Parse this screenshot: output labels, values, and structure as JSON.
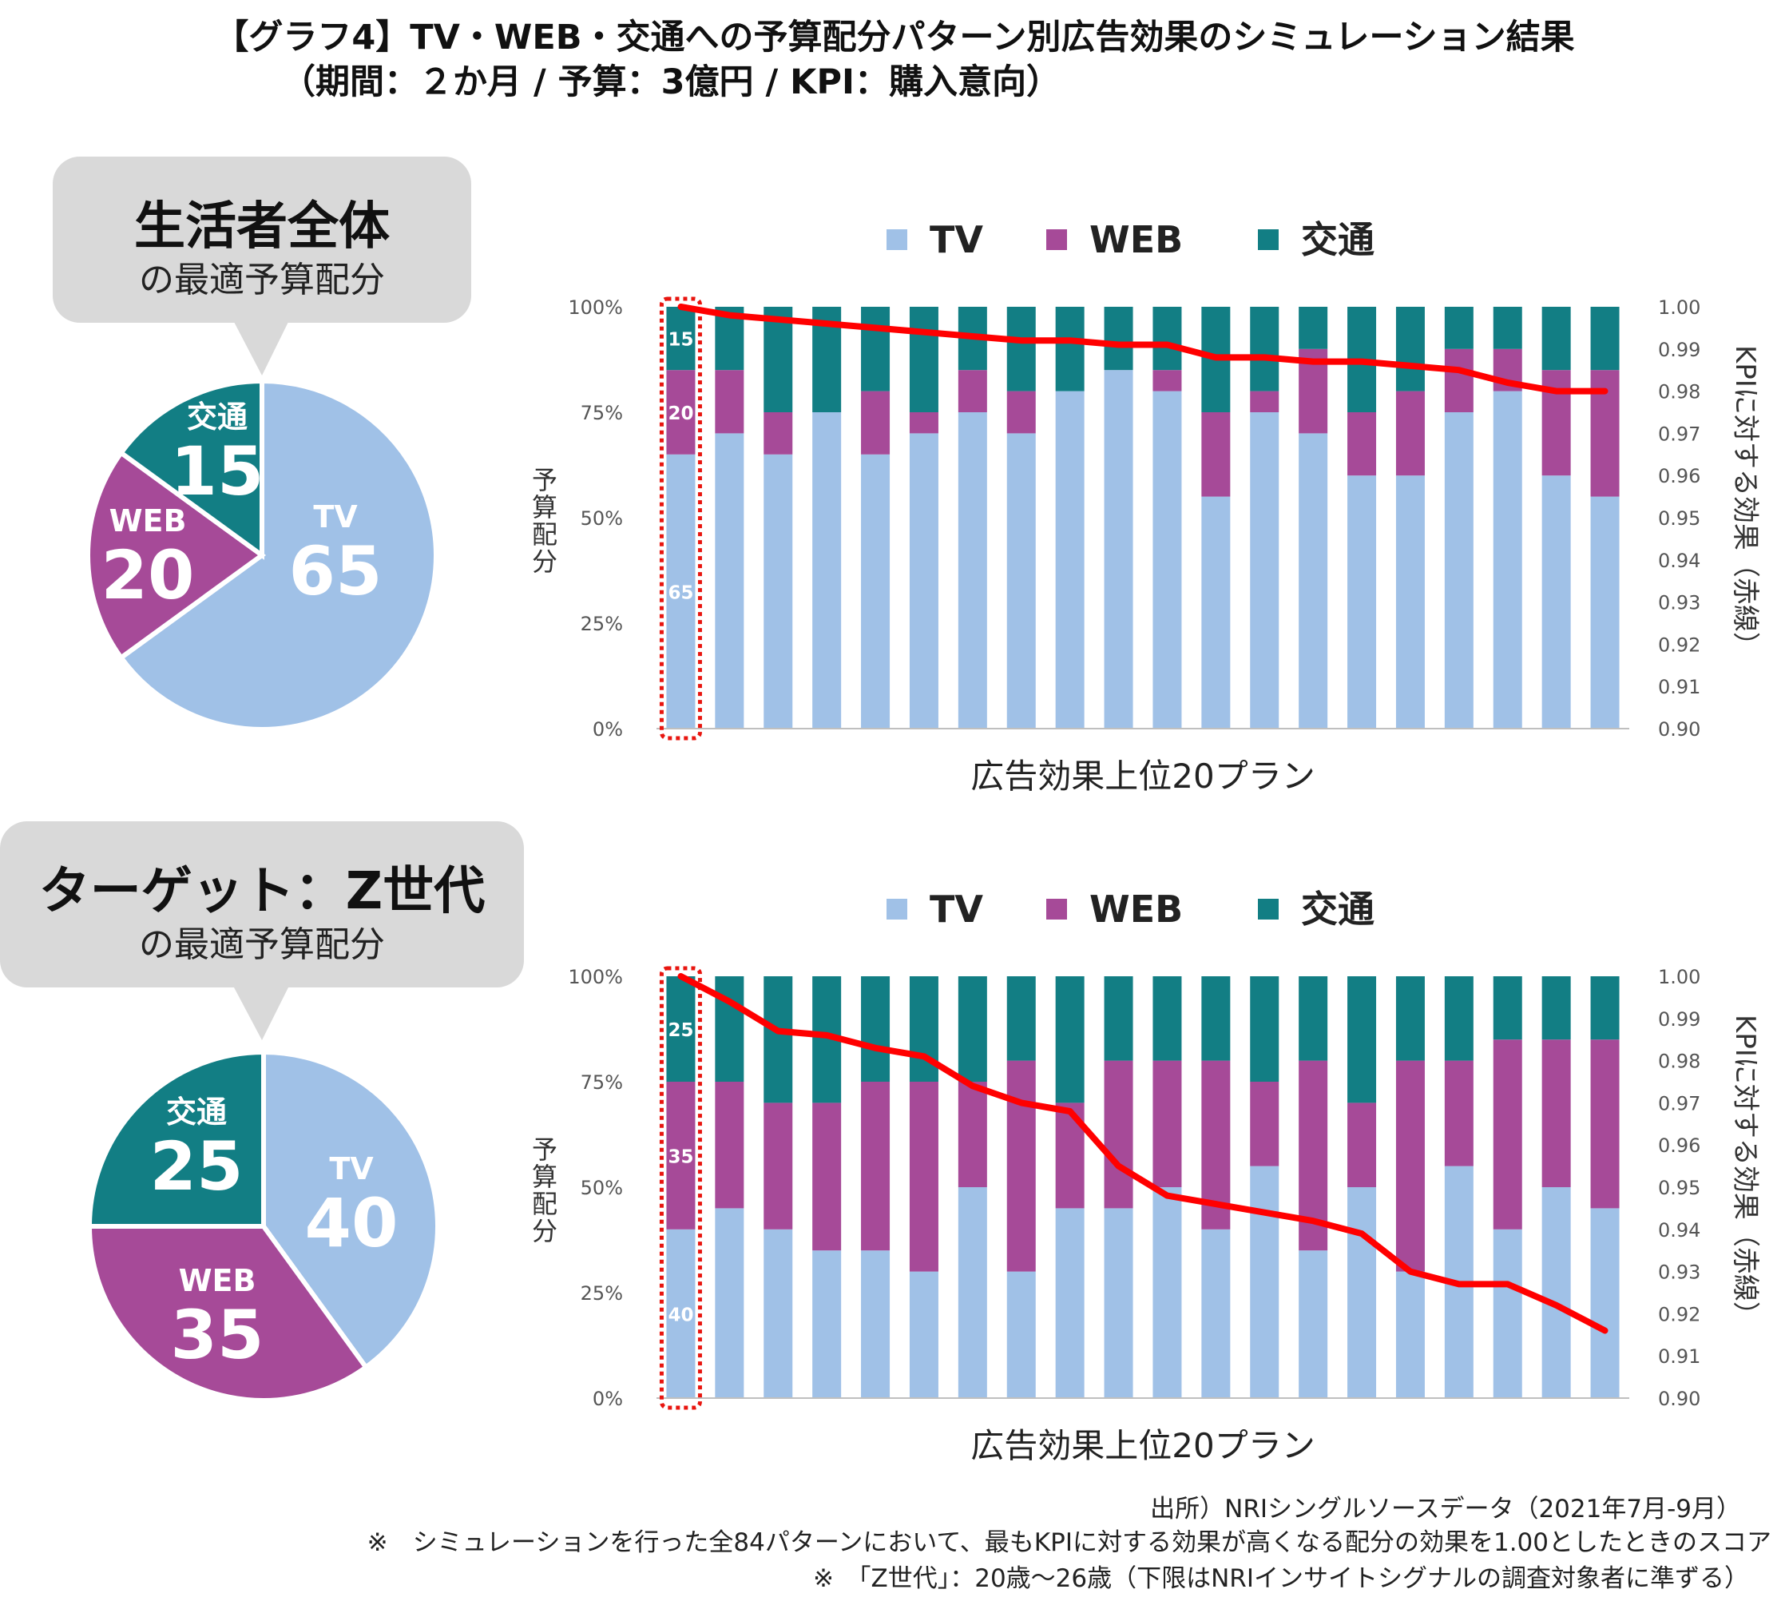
{
  "header": {
    "title_line1": "【グラフ4】TV・WEB・交通への予算配分パターン別広告効果のシミュレーション結果",
    "title_line2": "（期間：２か月 / 予算：3億円 / KPI：購入意向）"
  },
  "colors": {
    "tv": "#a0c1e7",
    "web": "#a64a98",
    "transit": "#127e84",
    "line": "#ff0000",
    "callout": "#d9d9d9",
    "highlight": "#e8150f"
  },
  "panels": [
    {
      "callout": {
        "main": "生活者全体",
        "sub": "の最適予算配分"
      },
      "pie": {
        "slices": [
          {
            "name": "TV",
            "value": "65"
          },
          {
            "name": "WEB",
            "value": "20"
          },
          {
            "name": "交通",
            "value": "15"
          }
        ]
      }
    },
    {
      "callout": {
        "main": "ターゲット：Z世代",
        "sub": "の最適予算配分"
      },
      "pie": {
        "slices": [
          {
            "name": "TV",
            "value": "40"
          },
          {
            "name": "WEB",
            "value": "35"
          },
          {
            "name": "交通",
            "value": "25"
          }
        ]
      }
    }
  ],
  "chart_data": [
    {
      "type": "bar",
      "stacked": true,
      "legend": [
        "TV",
        "WEB",
        "交通"
      ],
      "xlabel": "広告効果上位20プラン",
      "ylabel": "予算配分",
      "y2label": "KPIに対する効果（赤線）",
      "yticks": [
        "0%",
        "25%",
        "50%",
        "75%",
        "100%"
      ],
      "y2ticks": [
        "0.90",
        "0.91",
        "0.92",
        "0.93",
        "0.94",
        "0.95",
        "0.96",
        "0.97",
        "0.98",
        "0.99",
        "1.00"
      ],
      "ylim": [
        0,
        100
      ],
      "y2lim": [
        0.9,
        1.0
      ],
      "series": [
        {
          "name": "TV",
          "values": [
            65,
            70,
            65,
            75,
            65,
            70,
            75,
            70,
            80,
            85,
            80,
            55,
            75,
            70,
            60,
            60,
            75,
            80,
            60,
            55
          ]
        },
        {
          "name": "WEB",
          "values": [
            20,
            15,
            10,
            0,
            15,
            5,
            10,
            10,
            0,
            0,
            5,
            20,
            5,
            20,
            15,
            20,
            15,
            10,
            25,
            30
          ]
        },
        {
          "name": "交通",
          "values": [
            15,
            15,
            25,
            25,
            20,
            25,
            15,
            20,
            20,
            15,
            15,
            25,
            20,
            10,
            25,
            20,
            10,
            10,
            15,
            15
          ]
        }
      ],
      "line": {
        "name": "KPIに対する効果",
        "values": [
          1.0,
          0.998,
          0.997,
          0.996,
          0.995,
          0.994,
          0.993,
          0.992,
          0.992,
          0.991,
          0.991,
          0.988,
          0.988,
          0.987,
          0.987,
          0.986,
          0.985,
          0.982,
          0.98,
          0.98
        ]
      },
      "bar_labels": [
        "65",
        "20",
        "15"
      ]
    },
    {
      "type": "bar",
      "stacked": true,
      "legend": [
        "TV",
        "WEB",
        "交通"
      ],
      "xlabel": "広告効果上位20プラン",
      "ylabel": "予算配分",
      "y2label": "KPIに対する効果（赤線）",
      "yticks": [
        "0%",
        "25%",
        "50%",
        "75%",
        "100%"
      ],
      "y2ticks": [
        "0.90",
        "0.91",
        "0.92",
        "0.93",
        "0.94",
        "0.95",
        "0.96",
        "0.97",
        "0.98",
        "0.99",
        "1.00"
      ],
      "ylim": [
        0,
        100
      ],
      "y2lim": [
        0.9,
        1.0
      ],
      "series": [
        {
          "name": "TV",
          "values": [
            40,
            45,
            40,
            35,
            35,
            30,
            50,
            30,
            45,
            45,
            50,
            40,
            55,
            35,
            50,
            30,
            55,
            40,
            50,
            45
          ]
        },
        {
          "name": "WEB",
          "values": [
            35,
            30,
            30,
            35,
            40,
            45,
            25,
            50,
            25,
            35,
            30,
            40,
            20,
            45,
            20,
            50,
            25,
            45,
            35,
            40
          ]
        },
        {
          "name": "交通",
          "values": [
            25,
            25,
            30,
            30,
            25,
            25,
            25,
            20,
            30,
            20,
            20,
            20,
            25,
            20,
            30,
            20,
            20,
            15,
            15,
            15
          ]
        }
      ],
      "line": {
        "name": "KPIに対する効果",
        "values": [
          1.0,
          0.994,
          0.987,
          0.986,
          0.983,
          0.981,
          0.974,
          0.97,
          0.968,
          0.955,
          0.948,
          0.946,
          0.944,
          0.942,
          0.939,
          0.93,
          0.927,
          0.927,
          0.922,
          0.916
        ]
      },
      "bar_labels": [
        "40",
        "35",
        "25"
      ]
    }
  ],
  "footnotes": {
    "source": "出所）NRIシングルソースデータ（2021年7月-9月）",
    "note1": "※　シミュレーションを行った全84パターンにおいて、最もKPIに対する効果が高くなる配分の効果を1.00としたときのスコア",
    "note2": "※　「Z世代」：20歳～26歳（下限はNRIインサイトシグナルの調査対象者に準ずる）"
  }
}
